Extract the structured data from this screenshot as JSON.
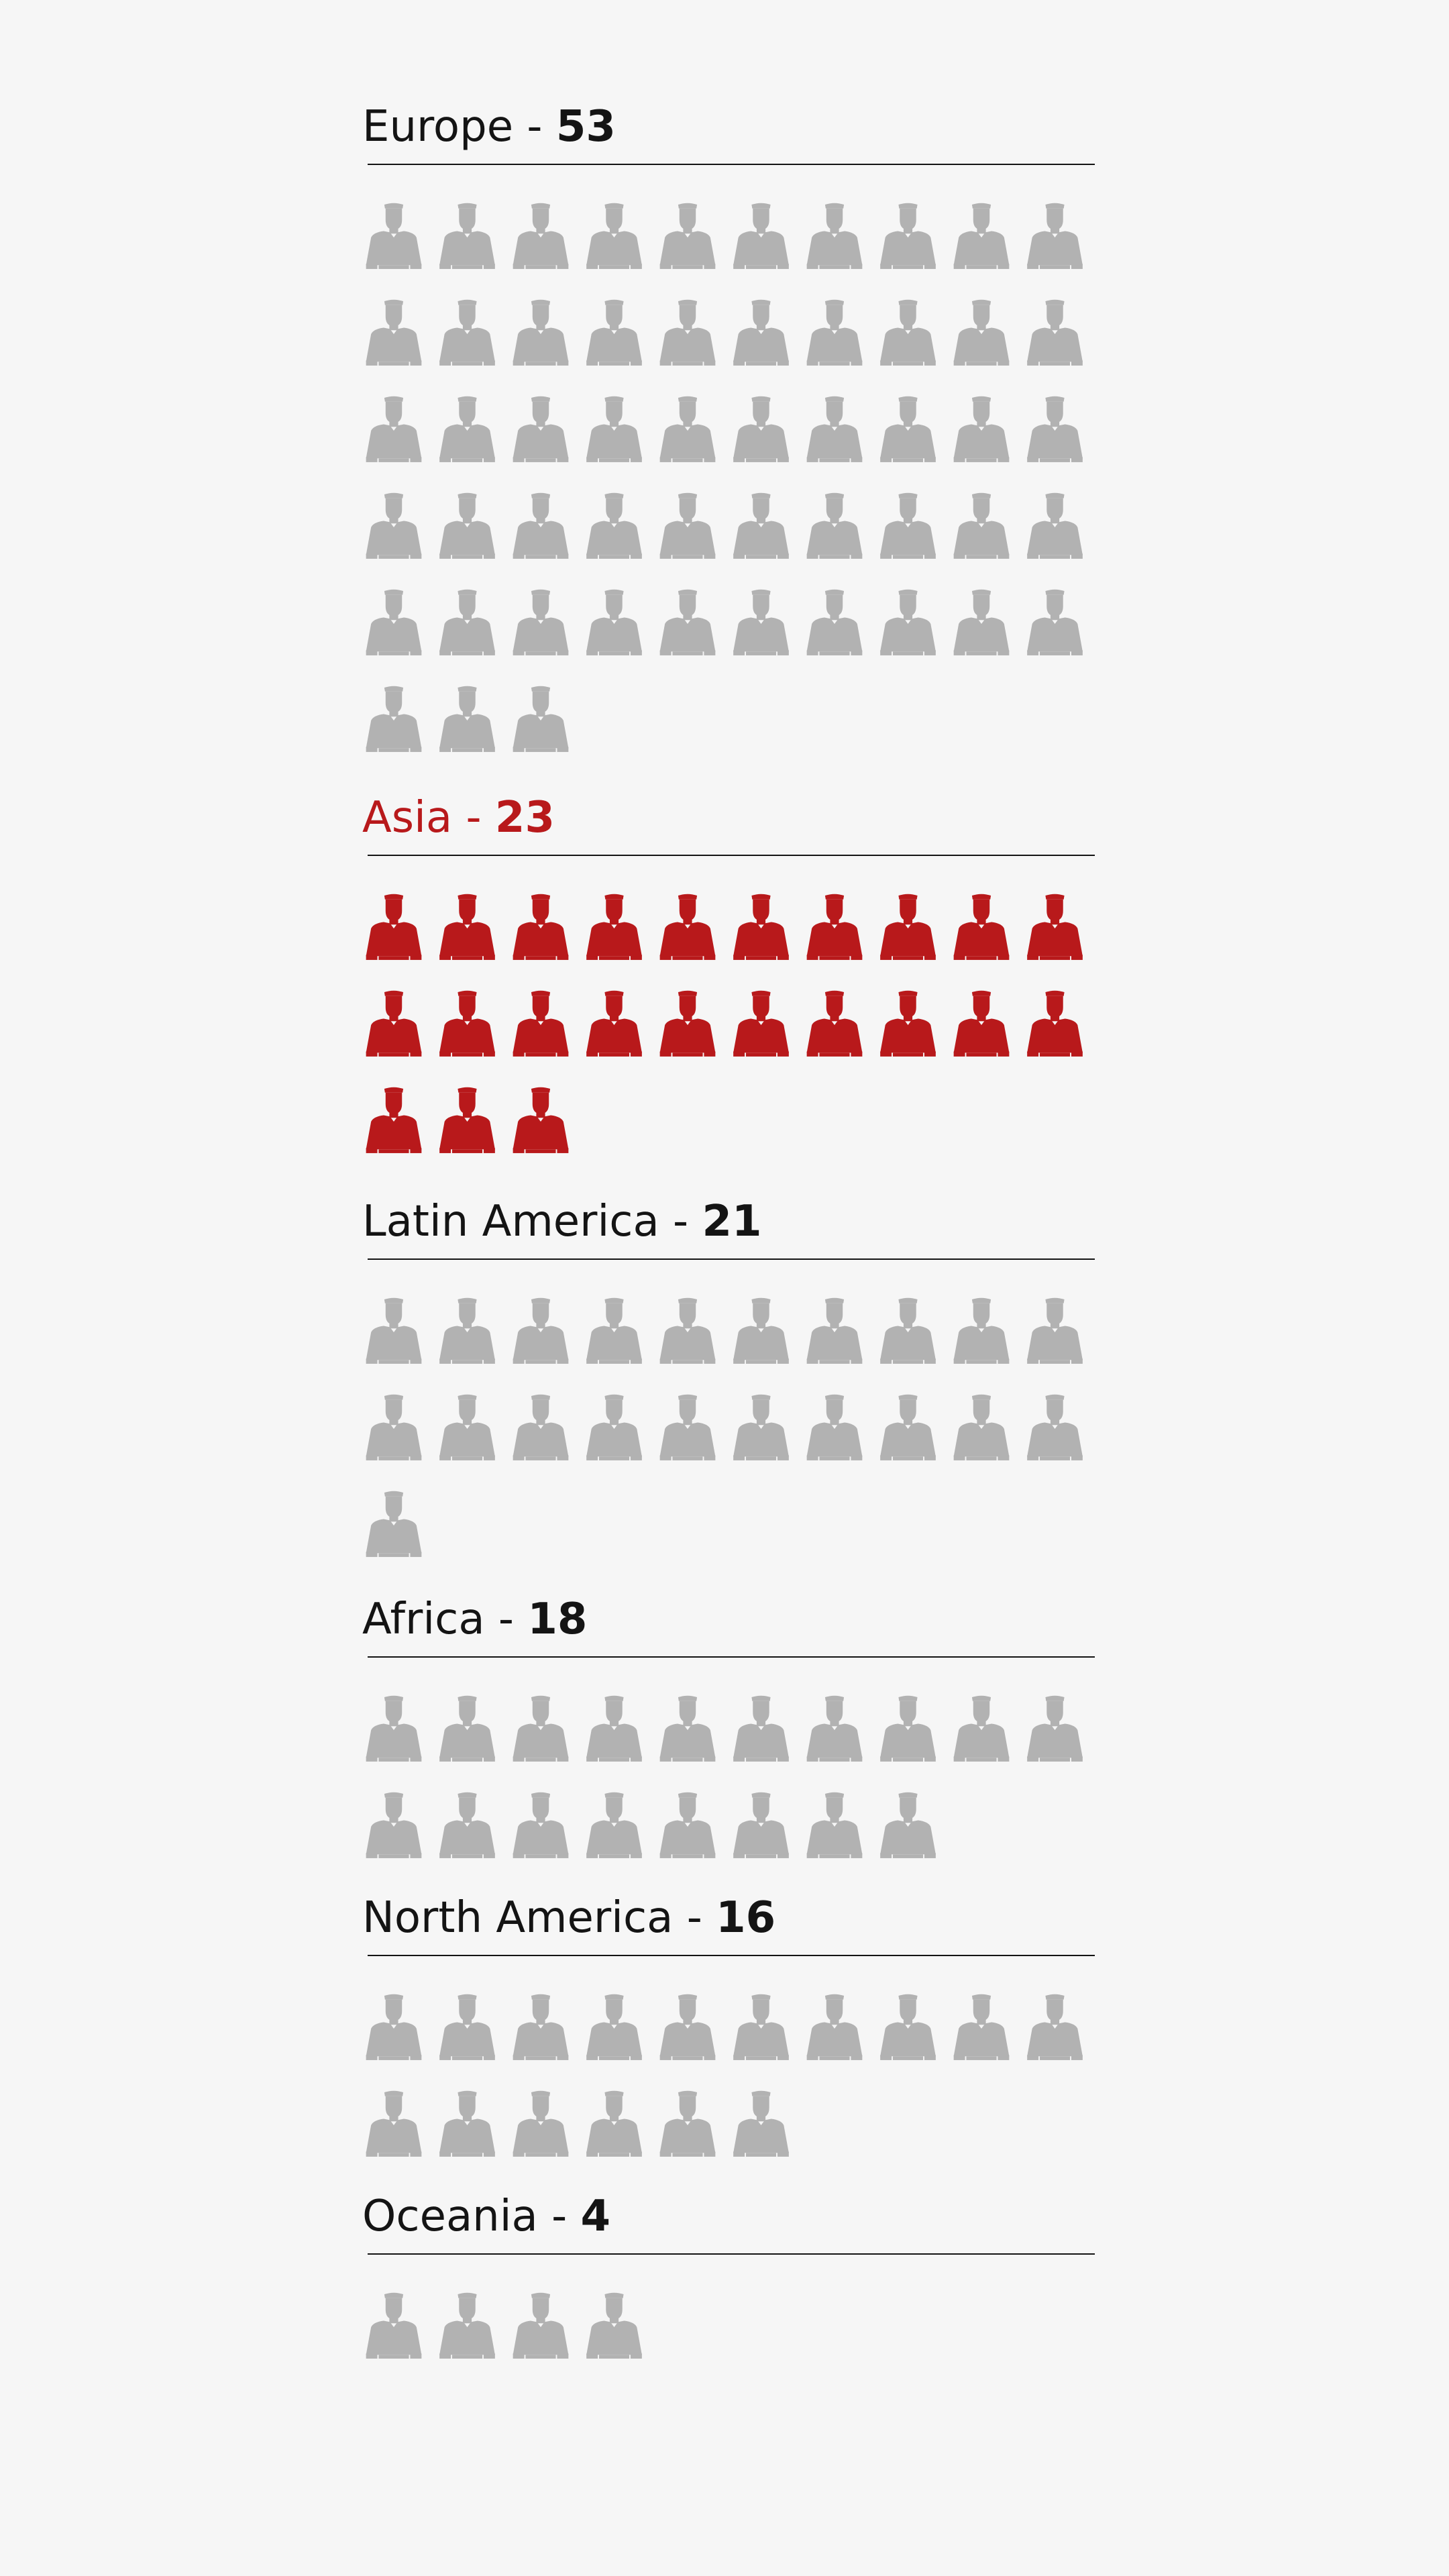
{
  "chart_data": {
    "type": "pictogram",
    "per_row": 10,
    "highlight_color": "#b8191b",
    "default_color": "#b2b2b2",
    "text_color": "#141414",
    "background": "#f6f6f6",
    "series": [
      {
        "name": "Europe",
        "separator": " - ",
        "value": 53,
        "highlighted": false
      },
      {
        "name": "Asia",
        "separator": " - ",
        "value": 23,
        "highlighted": true
      },
      {
        "name": "Latin America",
        "separator": " - ",
        "value": 21,
        "highlighted": false
      },
      {
        "name": "Africa",
        "separator": " - ",
        "value": 18,
        "highlighted": false
      },
      {
        "name": "North America",
        "separator": " - ",
        "value": 16,
        "highlighted": false
      },
      {
        "name": "Oceania",
        "separator": " - ",
        "value": 4,
        "highlighted": false
      }
    ],
    "icon": "cardinal-icon"
  }
}
